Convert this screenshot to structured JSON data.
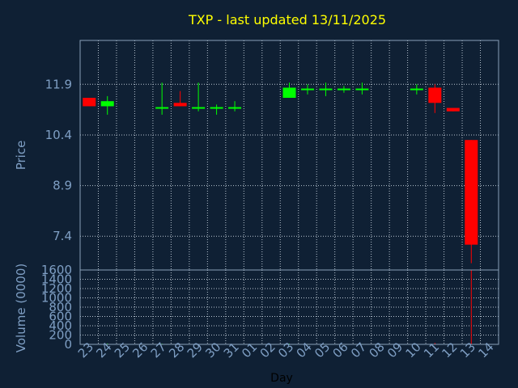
{
  "chart_data": {
    "type": "candlestick",
    "title": "TXP - last updated 13/11/2025",
    "xlabel": "Day",
    "price_panel": {
      "ylabel": "Price",
      "yticks": [
        7.4,
        8.9,
        10.4,
        11.9
      ],
      "ylim": [
        6.4,
        13.2
      ]
    },
    "volume_panel": {
      "ylabel": "Volume (0000)",
      "yticks": [
        0,
        200,
        400,
        600,
        800,
        1000,
        1200,
        1400,
        1600
      ],
      "ylim": [
        0,
        1600
      ]
    },
    "x_tick_labels": [
      "23",
      "24",
      "25",
      "26",
      "27",
      "28",
      "29",
      "30",
      "31",
      "01",
      "02",
      "03",
      "04",
      "05",
      "06",
      "07",
      "08",
      "09",
      "10",
      "11",
      "12",
      "13",
      "14"
    ],
    "candles": [
      {
        "day": "23",
        "open": 11.5,
        "close": 11.25,
        "high": 11.5,
        "low": 11.25,
        "volume": 0
      },
      {
        "day": "24",
        "open": 11.25,
        "close": 11.4,
        "high": 11.55,
        "low": 11.0,
        "volume": 20
      },
      {
        "day": "27",
        "open": 11.2,
        "close": 11.2,
        "high": 11.95,
        "low": 11.0,
        "volume": 15
      },
      {
        "day": "28",
        "open": 11.35,
        "close": 11.25,
        "high": 11.7,
        "low": 11.25,
        "volume": 10
      },
      {
        "day": "29",
        "open": 11.2,
        "close": 11.2,
        "high": 11.95,
        "low": 11.1,
        "volume": 5
      },
      {
        "day": "30",
        "open": 11.2,
        "close": 11.2,
        "high": 11.3,
        "low": 11.0,
        "volume": 5
      },
      {
        "day": "31",
        "open": 11.2,
        "close": 11.2,
        "high": 11.4,
        "low": 11.1,
        "volume": 5
      },
      {
        "day": "03",
        "open": 11.5,
        "close": 11.8,
        "high": 11.95,
        "low": 11.5,
        "volume": 15
      },
      {
        "day": "04",
        "open": 11.75,
        "close": 11.75,
        "high": 11.9,
        "low": 11.6,
        "volume": 10
      },
      {
        "day": "05",
        "open": 11.75,
        "close": 11.75,
        "high": 11.95,
        "low": 11.55,
        "volume": 10
      },
      {
        "day": "06",
        "open": 11.75,
        "close": 11.75,
        "high": 11.85,
        "low": 11.65,
        "volume": 5
      },
      {
        "day": "07",
        "open": 11.75,
        "close": 11.75,
        "high": 11.95,
        "low": 11.6,
        "volume": 10
      },
      {
        "day": "10",
        "open": 11.75,
        "close": 11.75,
        "high": 11.9,
        "low": 11.6,
        "volume": 5
      },
      {
        "day": "11",
        "open": 11.8,
        "close": 11.35,
        "high": 11.9,
        "low": 11.05,
        "volume": 30
      },
      {
        "day": "12",
        "open": 11.2,
        "close": 11.1,
        "high": 11.2,
        "low": 11.1,
        "volume": 5
      },
      {
        "day": "13",
        "open": 10.25,
        "close": 7.15,
        "high": 10.25,
        "low": 6.6,
        "volume": 1600
      }
    ],
    "colors": {
      "background": "#0f2034",
      "grid": "#b8c4d0",
      "frame": "#8aa0b8",
      "up": "#00ff00",
      "down": "#ff0000",
      "title": "#ffff00",
      "axis_text": "#7f9fc4"
    },
    "grid": true
  }
}
